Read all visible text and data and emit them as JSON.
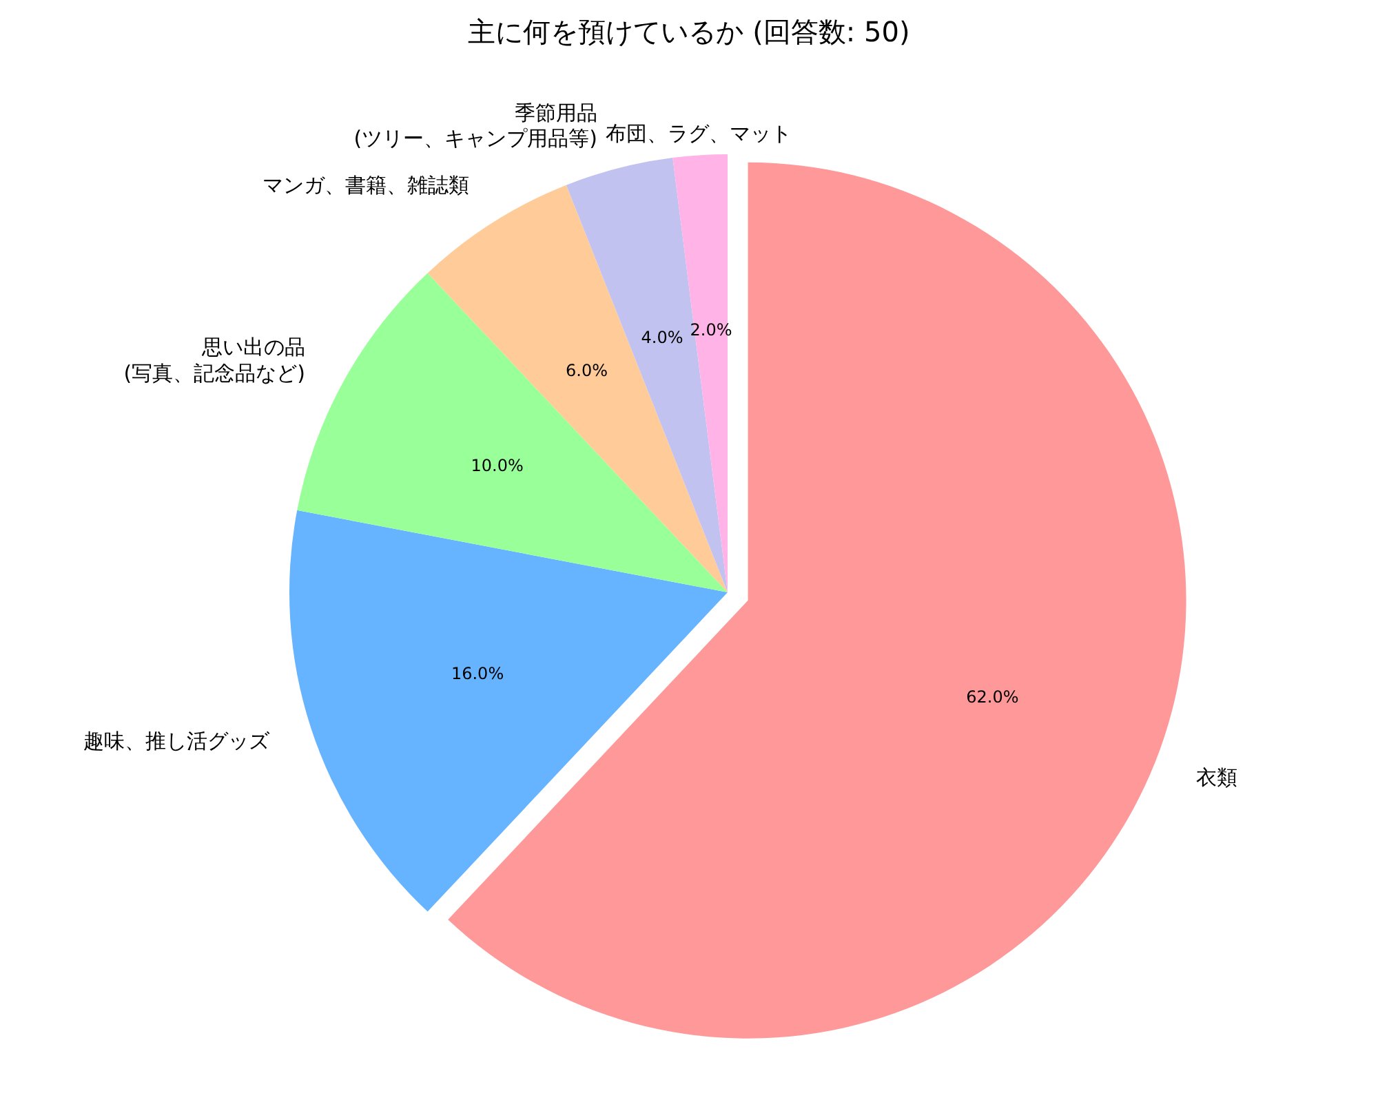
{
  "chart_data": {
    "type": "pie",
    "title": "主に何を預けているか (回答数: 50)",
    "categories": [
      "衣類",
      "趣味、推し活グッズ",
      "思い出の品\n(写真、記念品など)",
      "マンガ、書籍、雑誌類",
      "季節用品\n(ツリー、キャンプ用品等)",
      "布団、ラグ、マット"
    ],
    "values": [
      62,
      16,
      10,
      6,
      4,
      2
    ],
    "value_labels": [
      "62.0%",
      "16.0%",
      "10.0%",
      "6.0%",
      "4.0%",
      "2.0%"
    ],
    "colors": [
      "#ff9999",
      "#66b3ff",
      "#99ff99",
      "#ffcc99",
      "#c2c2f0",
      "#ffb3e6"
    ]
  }
}
